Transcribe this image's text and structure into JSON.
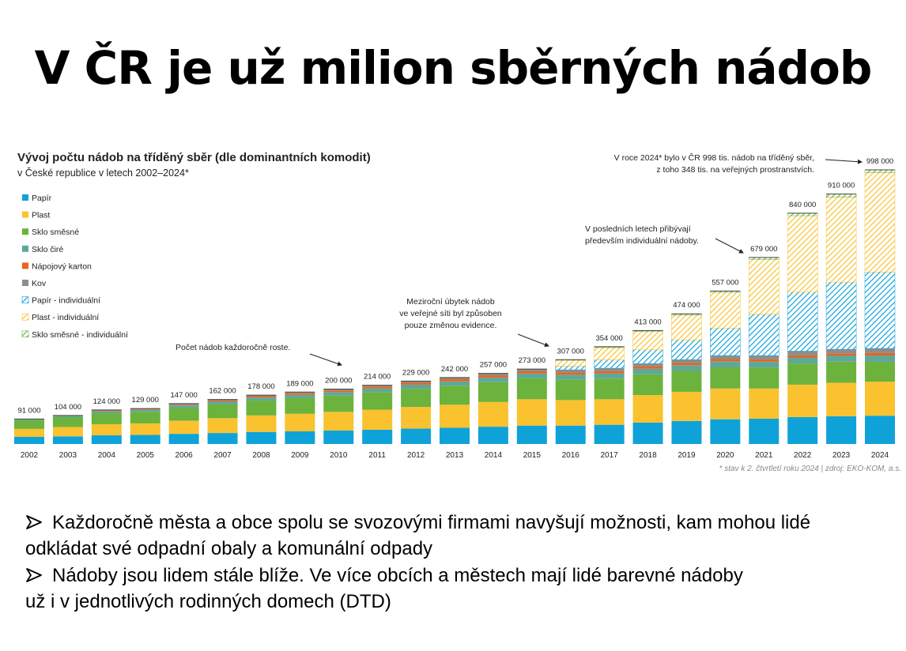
{
  "header": {
    "title": "V ČR je už milion sběrných nádob"
  },
  "chart_data": {
    "type": "stacked_bar",
    "title": "Vývoj počtu nádob na tříděný sběr (dle dominantních komodit)",
    "subtitle": "v České republice v letech 2002–2024*",
    "categories": [
      "2002",
      "2003",
      "2004",
      "2005",
      "2006",
      "2007",
      "2008",
      "2009",
      "2010",
      "2011",
      "2012",
      "2013",
      "2014",
      "2015",
      "2016",
      "2017",
      "2018",
      "2019",
      "2020",
      "2021",
      "2022",
      "2023",
      "2024"
    ],
    "series": [
      {
        "name": "Papír",
        "color": "#0fa2d9",
        "hatched": false,
        "values": [
          26000,
          28000,
          32000,
          33000,
          37000,
          40000,
          44000,
          46000,
          49000,
          52000,
          56000,
          59000,
          63000,
          67000,
          67000,
          70000,
          78000,
          84000,
          90000,
          92000,
          98000,
          101000,
          103000
        ]
      },
      {
        "name": "Plast",
        "color": "#f9c22e",
        "hatched": false,
        "values": [
          29000,
          34000,
          40000,
          42000,
          48000,
          54000,
          60000,
          64000,
          68000,
          73000,
          79000,
          84000,
          90000,
          96000,
          93000,
          93000,
          100000,
          106000,
          112000,
          110000,
          118000,
          122000,
          124000
        ]
      },
      {
        "name": "Sklo směsné",
        "color": "#6bb33c",
        "hatched": false,
        "values": [
          32000,
          36000,
          40000,
          42000,
          46000,
          50000,
          54000,
          57000,
          59000,
          63000,
          66000,
          69000,
          72000,
          76000,
          74000,
          75000,
          76000,
          76000,
          77000,
          76000,
          77000,
          77000,
          72000
        ]
      },
      {
        "name": "Sklo čiré",
        "color": "#5fa899",
        "hatched": false,
        "values": [
          4000,
          5000,
          6000,
          7000,
          9000,
          10000,
          11000,
          12000,
          13000,
          14000,
          15000,
          16000,
          17000,
          18000,
          18000,
          19000,
          20000,
          21000,
          22000,
          22000,
          22000,
          22000,
          23000
        ]
      },
      {
        "name": "Nápojový karton",
        "color": "#e8641b",
        "hatched": false,
        "values": [
          0,
          1000,
          2000,
          2000,
          3000,
          4000,
          5000,
          6000,
          6000,
          7000,
          7000,
          8000,
          8000,
          8000,
          8000,
          8000,
          8000,
          8000,
          8000,
          8000,
          8000,
          8000,
          9000
        ]
      },
      {
        "name": "Kov",
        "color": "#8d8d8d",
        "hatched": false,
        "values": [
          0,
          0,
          4000,
          3000,
          4000,
          4000,
          4000,
          4000,
          5000,
          5000,
          6000,
          6000,
          7000,
          8000,
          10000,
          11000,
          11000,
          12000,
          13000,
          14000,
          15000,
          15000,
          17000
        ]
      },
      {
        "name": "Papír - individuální",
        "color": "#0fa2d9",
        "hatched": true,
        "values": [
          0,
          0,
          0,
          0,
          0,
          0,
          0,
          0,
          0,
          0,
          0,
          0,
          0,
          0,
          13000,
          30000,
          50000,
          72000,
          100000,
          150000,
          215000,
          244000,
          278000
        ]
      },
      {
        "name": "Plast - individuální",
        "color": "#f9c22e",
        "hatched": true,
        "values": [
          0,
          0,
          0,
          0,
          0,
          0,
          0,
          0,
          0,
          0,
          0,
          0,
          0,
          0,
          22000,
          45000,
          66000,
          90000,
          130000,
          200000,
          278000,
          310000,
          362000
        ]
      },
      {
        "name": "Sklo směsné - individuální",
        "color": "#6bb33c",
        "hatched": true,
        "values": [
          0,
          0,
          0,
          0,
          0,
          0,
          0,
          0,
          0,
          0,
          0,
          0,
          0,
          0,
          2000,
          3000,
          4000,
          5000,
          5000,
          7000,
          9000,
          11000,
          10000
        ]
      }
    ],
    "totals": [
      91000,
      104000,
      124000,
      129000,
      147000,
      162000,
      178000,
      189000,
      200000,
      214000,
      229000,
      242000,
      257000,
      273000,
      307000,
      354000,
      413000,
      474000,
      557000,
      679000,
      840000,
      910000,
      998000
    ],
    "total_labels": [
      "91 000",
      "104 000",
      "124 000",
      "129 000",
      "147 000",
      "162 000",
      "178 000",
      "189 000",
      "200 000",
      "214 000",
      "229 000",
      "242 000",
      "257 000",
      "273 000",
      "307 000",
      "354 000",
      "413 000",
      "474 000",
      "557 000",
      "679 000",
      "840 000",
      "910 000",
      "998 000"
    ],
    "annotations": [
      {
        "lines": [
          "Počet nádob každoročně roste."
        ]
      },
      {
        "lines": [
          "Meziroční úbytek nádob",
          "ve veřejné síti byl způsoben",
          "pouze změnou evidence."
        ]
      },
      {
        "lines": [
          "V posledních letech přibývají",
          "především individuální nádoby."
        ]
      },
      {
        "lines": [
          "V roce 2024* bylo v ČR 998 tis. nádob na tříděný sběr,",
          "z toho 348 tis. na veřejných prostranstvích."
        ]
      }
    ],
    "footnote": "* stav k 2. čtvrtletí roku 2024 | zdroj: EKO-KOM, a.s.",
    "legend": "top-left"
  },
  "bullets": [
    {
      "lines": [
        "Každoročně města a obce spolu se svozovými firmami navyšují možnosti, kam mohou lidé",
        "odkládat své odpadní obaly a komunální odpady"
      ]
    },
    {
      "lines": [
        "Nádoby jsou lidem stále blíže. Ve více obcích a městech mají lidé barevné nádoby",
        "už i v jednotlivých rodinných domech (DTD)"
      ]
    }
  ]
}
